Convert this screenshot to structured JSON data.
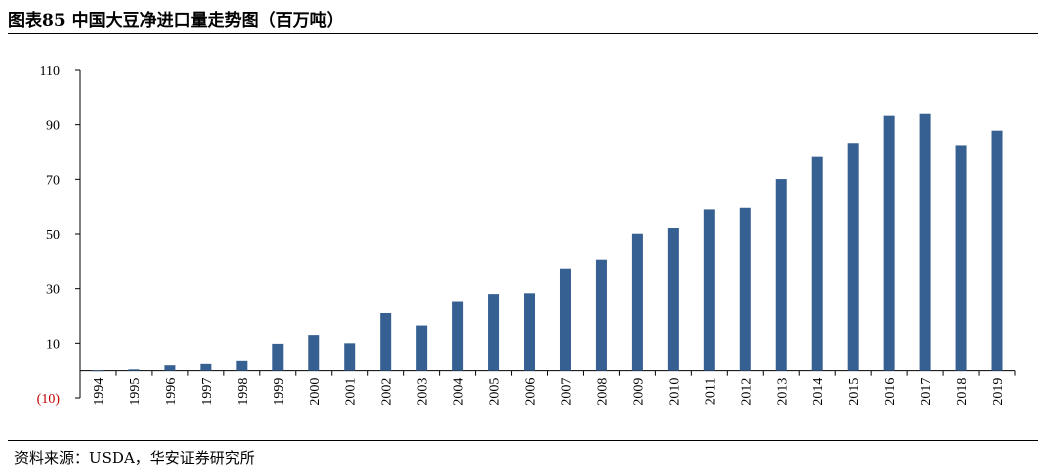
{
  "header": {
    "title": "图表85 中国大豆净进口量走势图（百万吨）"
  },
  "footer": {
    "source": "资料来源：USDA，华安证券研究所"
  },
  "colors": {
    "bar": "#366092",
    "negative_tick": "#c00000",
    "axis": "#000000"
  },
  "chart_data": {
    "type": "bar",
    "title": "图表85 中国大豆净进口量走势图（百万吨）",
    "xlabel": "",
    "ylabel": "",
    "ylim": [
      -10,
      110
    ],
    "yticks": [
      {
        "value": 110,
        "label": "110"
      },
      {
        "value": 90,
        "label": "90"
      },
      {
        "value": 70,
        "label": "70"
      },
      {
        "value": 50,
        "label": "50"
      },
      {
        "value": 30,
        "label": "30"
      },
      {
        "value": 10,
        "label": "10"
      },
      {
        "value": -10,
        "label": "(10)"
      }
    ],
    "categories": [
      "1994",
      "1995",
      "1996",
      "1997",
      "1998",
      "1999",
      "2000",
      "2001",
      "2002",
      "2003",
      "2004",
      "2005",
      "2006",
      "2007",
      "2008",
      "2009",
      "2010",
      "2011",
      "2012",
      "2013",
      "2014",
      "2015",
      "2016",
      "2017",
      "2018",
      "2019"
    ],
    "values": [
      0.1,
      0.5,
      2.0,
      2.5,
      3.6,
      9.8,
      13.0,
      10.0,
      21.1,
      16.5,
      25.3,
      28.0,
      28.3,
      37.3,
      40.6,
      50.1,
      52.2,
      59.0,
      59.6,
      70.1,
      78.3,
      83.2,
      93.3,
      94.0,
      82.4,
      87.8
    ],
    "grid": false,
    "legend": "none"
  }
}
